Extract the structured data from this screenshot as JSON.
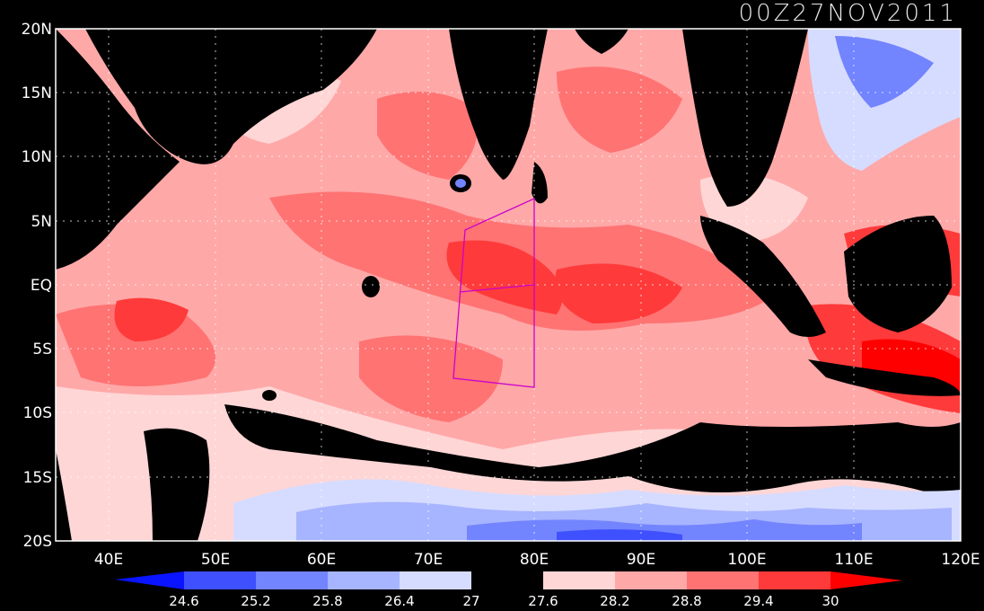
{
  "title": "00Z27NOV2011",
  "map": {
    "region": "Indian Ocean",
    "lon_range": [
      35,
      120
    ],
    "lat_range": [
      -20,
      20
    ],
    "lat_ticks": [
      "20N",
      "15N",
      "10N",
      "5N",
      "EQ",
      "5S",
      "10S",
      "15S",
      "20S"
    ],
    "lon_ticks": [
      "40E",
      "50E",
      "60E",
      "70E",
      "80E",
      "90E",
      "100E",
      "110E",
      "120E"
    ],
    "land_color": "#000000",
    "box_color": "#cc00cc"
  },
  "colorbar": {
    "values": [
      "24.6",
      "25.2",
      "25.8",
      "26.4",
      "27",
      "27.6",
      "28.2",
      "28.8",
      "29.4",
      "30"
    ],
    "colors": [
      "#0a14ff",
      "#3f50ff",
      "#7384ff",
      "#a7b4ff",
      "#d6dcff",
      "#000000",
      "#ffd6d6",
      "#ffa8a8",
      "#ff7373",
      "#ff3a3a",
      "#ff0000"
    ]
  }
}
